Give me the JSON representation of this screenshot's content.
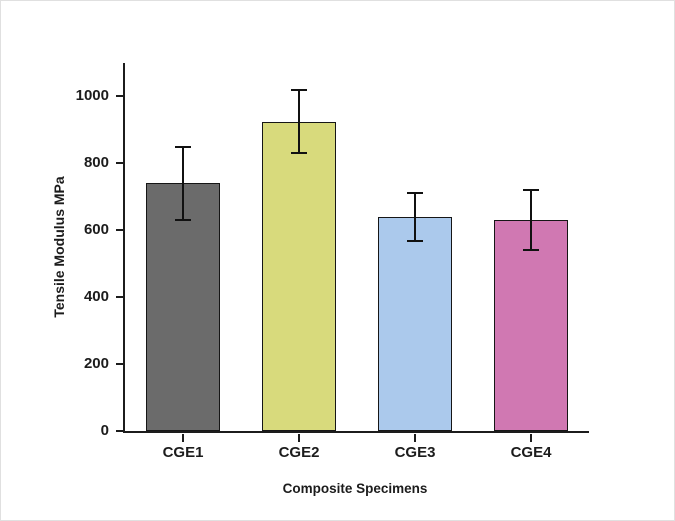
{
  "chart_data": {
    "type": "bar",
    "title": "",
    "categories": [
      "CGE1",
      "CGE2",
      "CGE3",
      "CGE4"
    ],
    "values": [
      740,
      925,
      640,
      630
    ],
    "errors": [
      110,
      95,
      72,
      90
    ],
    "bar_colors": [
      "#6b6b6b",
      "#d8da7c",
      "#abc9ec",
      "#d078b2"
    ],
    "error_bar_color": "#111111",
    "xlabel": "Composite Specimens",
    "ylabel": "Tensile Modulus MPa",
    "ylim": [
      0,
      1100
    ],
    "yticks": [
      0,
      200,
      400,
      600,
      800,
      1000
    ],
    "grid": false,
    "legend": "none"
  }
}
